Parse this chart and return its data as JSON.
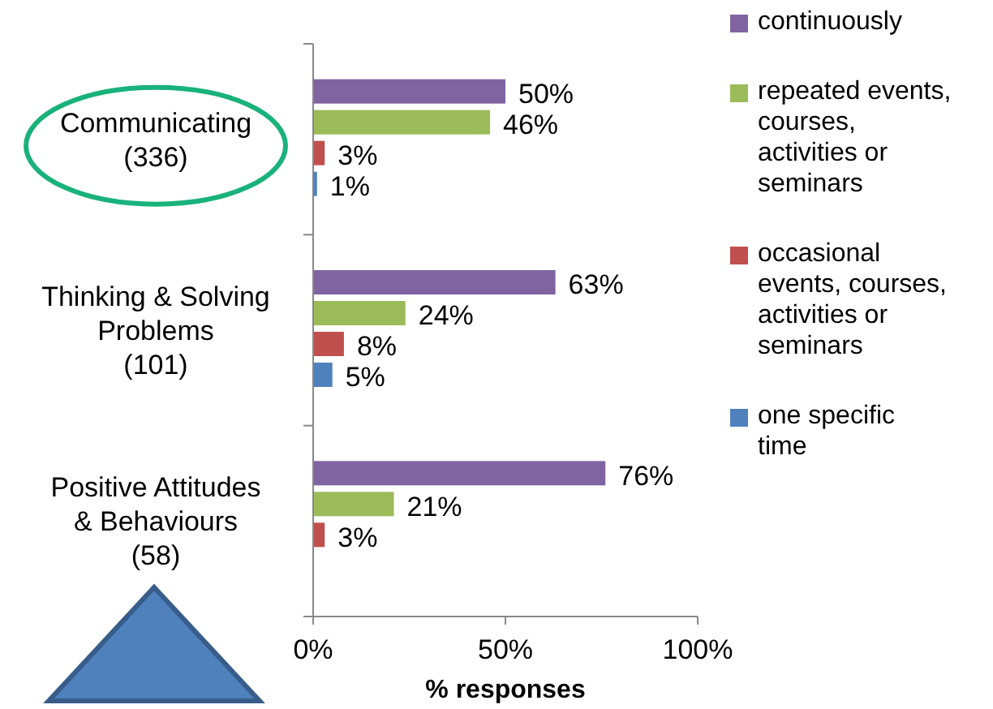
{
  "chart_data": {
    "type": "bar",
    "orientation": "horizontal",
    "xlabel": "% responses",
    "categories": [
      "Communicating (336)",
      "Thinking & Solving Problems (101)",
      "Positive Attitudes & Behaviours (58)"
    ],
    "series": [
      {
        "name": "continuously",
        "color": "#8064a2",
        "values": [
          50,
          63,
          76
        ],
        "value_labels": [
          "50%",
          "63%",
          "76%"
        ]
      },
      {
        "name": "repeated events, courses, activities or seminars",
        "color": "#9bbb59",
        "values": [
          46,
          24,
          21
        ],
        "value_labels": [
          "46%",
          "24%",
          "21%"
        ]
      },
      {
        "name": "occasional events, courses, activities or seminars",
        "color": "#c0504d",
        "values": [
          3,
          8,
          3
        ],
        "value_labels": [
          "3%",
          "8%",
          "3%"
        ]
      },
      {
        "name": "one specific time",
        "color": "#4f81bd",
        "values": [
          1,
          5,
          null
        ],
        "value_labels": [
          "1%",
          "5%",
          null
        ]
      }
    ],
    "xlim": [
      0,
      100
    ],
    "xticks": [
      {
        "value": 0,
        "label": "0%"
      },
      {
        "value": 50,
        "label": "50%"
      },
      {
        "value": 100,
        "label": "100%"
      }
    ],
    "grid": false,
    "legend": "right"
  }
}
